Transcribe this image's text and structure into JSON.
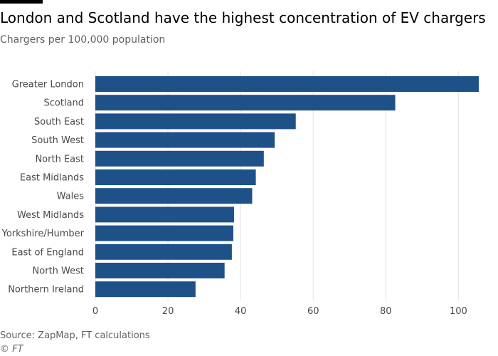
{
  "title": "London and Scotland have the highest concentration of EV chargers",
  "subtitle": "Chargers per 100,000 population",
  "source": "Source: ZapMap, FT calculations",
  "credit": "© FT",
  "colors": {
    "bar": "#1f5189",
    "grid": "#e6e1dc",
    "axis": "#66605c"
  },
  "chart_data": {
    "type": "bar",
    "orientation": "horizontal",
    "title": "London and Scotland have the highest concentration of EV chargers",
    "subtitle": "Chargers per 100,000 population",
    "xlabel": "",
    "ylabel": "",
    "xlim": [
      0,
      106
    ],
    "ticks": [
      "0",
      "20",
      "40",
      "60",
      "80",
      "100"
    ],
    "grid": true,
    "categories": [
      "Greater London",
      "Scotland",
      "South East",
      "South West",
      "North East",
      "East Midlands",
      "Wales",
      "West Midlands",
      "Yorkshire/Humber",
      "East of England",
      "North West",
      "Northern Ireland"
    ],
    "values": [
      105.6,
      82.6,
      55.2,
      49.4,
      46.4,
      44.2,
      43.2,
      38.2,
      38.0,
      37.6,
      35.6,
      27.6
    ]
  }
}
